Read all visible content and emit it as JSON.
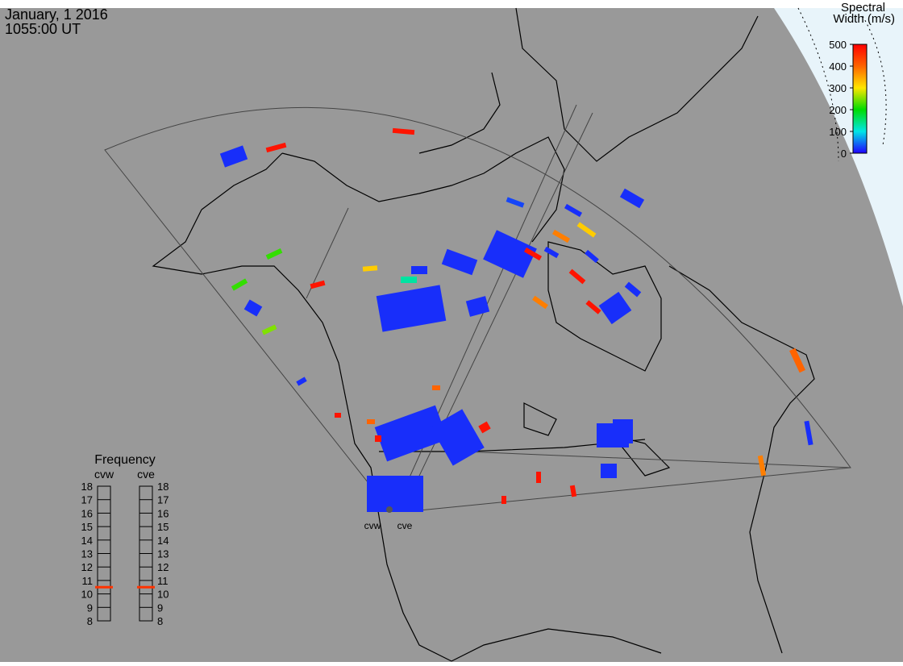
{
  "header": {
    "date": "January, 1 2016",
    "time": "1055:00 UT"
  },
  "colorbar": {
    "title_lines": [
      "Spectral",
      "Width (m/s)"
    ],
    "range": [
      0,
      500
    ],
    "ticks": [
      0,
      100,
      200,
      300,
      400,
      500
    ]
  },
  "frequency_panel": {
    "title": "Frequency",
    "radars": [
      "cvw",
      "cve"
    ],
    "range": [
      8,
      18
    ],
    "ticks": [
      8,
      9,
      10,
      11,
      12,
      13,
      14,
      15,
      16,
      17,
      18
    ],
    "values": [
      10.5,
      10.5
    ]
  },
  "radar_sites": [
    "cvw",
    "cve"
  ],
  "echoes": {
    "spectral_width": [
      20,
      480,
      480,
      30,
      20,
      20,
      380,
      320,
      20,
      480,
      20,
      480,
      20,
      20,
      20,
      380,
      480,
      20,
      320,
      130,
      480,
      20,
      20,
      20,
      220,
      220,
      20,
      250,
      480,
      20,
      400,
      480,
      20,
      20,
      480,
      20,
      20,
      20,
      480,
      480,
      480,
      400,
      20,
      380,
      20,
      400,
      480
    ]
  }
}
